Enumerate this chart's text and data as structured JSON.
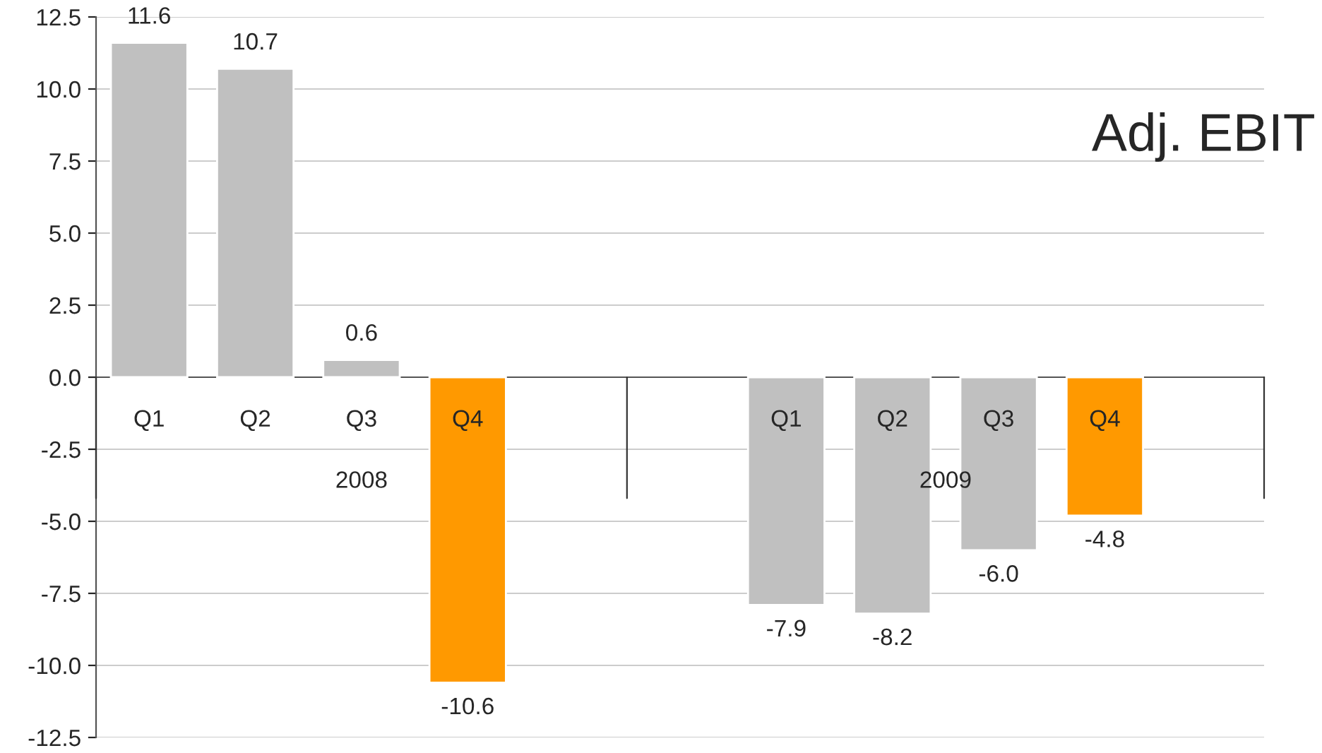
{
  "chart_data": {
    "type": "bar",
    "title": "Adj. EBIT",
    "categories": [
      "Q1",
      "Q2",
      "Q3",
      "Q4",
      null,
      null,
      "Q1",
      "Q2",
      "Q3",
      "Q4",
      null
    ],
    "values": [
      11.6,
      10.7,
      0.6,
      -10.6,
      null,
      null,
      -7.9,
      -8.2,
      -6.0,
      -4.8,
      null
    ],
    "colors": [
      "#c0c0c0",
      "#c0c0c0",
      "#c0c0c0",
      "#ff9900",
      null,
      null,
      "#c0c0c0",
      "#c0c0c0",
      "#c0c0c0",
      "#ff9900",
      null
    ],
    "value_labels": [
      "11.6",
      "10.7",
      "0.6",
      "-10.6",
      null,
      null,
      "-7.9",
      "-8.2",
      "-6.0",
      "-4.8",
      null
    ],
    "annotations": [
      "2008",
      "2009"
    ],
    "ylim": [
      -12.5,
      12.5
    ],
    "yticks": [
      {
        "value": -12.5,
        "label": "-12.5"
      },
      {
        "value": -10,
        "label": "-10.0"
      },
      {
        "value": -7.5,
        "label": "-7.5"
      },
      {
        "value": -5,
        "label": "-5.0"
      },
      {
        "value": -2.5,
        "label": "-2.5"
      },
      {
        "value": 0,
        "label": "0.0"
      },
      {
        "value": 2.5,
        "label": "2.5"
      },
      {
        "value": 5,
        "label": "5.0"
      },
      {
        "value": 7.5,
        "label": "7.5"
      },
      {
        "value": 10,
        "label": "10.0"
      },
      {
        "value": 12.5,
        "label": "12.5"
      }
    ],
    "grid": "y",
    "legend": false
  }
}
